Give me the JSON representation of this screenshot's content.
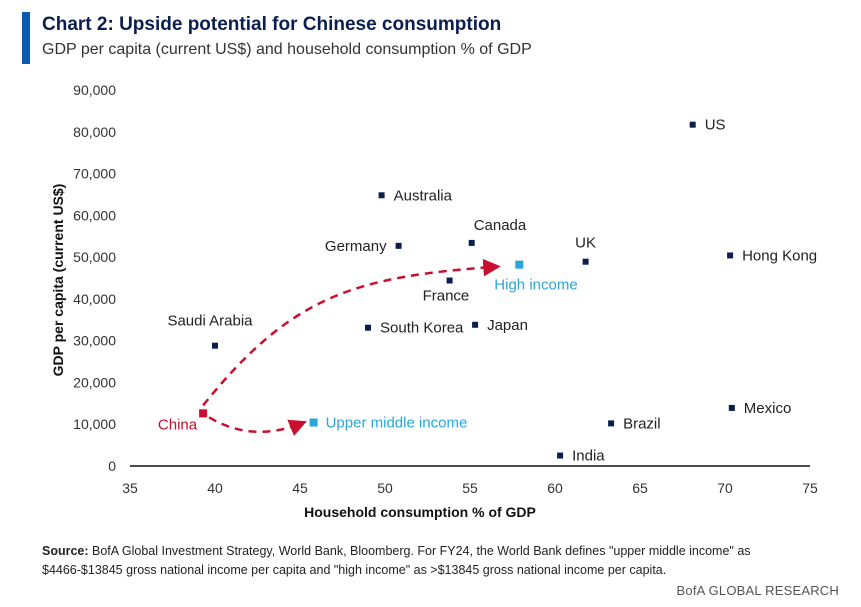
{
  "header": {
    "title": "Chart 2: Upside potential for Chinese consumption",
    "subtitle": "GDP per capita (current US$) and household consumption % of GDP"
  },
  "footer": {
    "source_label": "Source:",
    "source_text": " BofA Global Investment Strategy, World Bank, Bloomberg. For FY24, the World Bank defines \"upper middle income\" as $4466-$13845 gross national income per capita and \"high income\" as >$13845 gross national income per capita.",
    "brand": "BofA GLOBAL RESEARCH"
  },
  "chart_data": {
    "type": "scatter",
    "title": "Chart 2: Upside potential for Chinese consumption",
    "subtitle": "GDP per capita (current US$) and household consumption % of GDP",
    "xlabel": "Household consumption % of GDP",
    "ylabel": "GDP per capita (current US$)",
    "xlim": [
      35,
      75
    ],
    "ylim": [
      0,
      90000
    ],
    "xticks": [
      35,
      40,
      45,
      50,
      55,
      60,
      65,
      70,
      75
    ],
    "yticks": [
      0,
      10000,
      20000,
      30000,
      40000,
      50000,
      60000,
      70000,
      80000,
      90000
    ],
    "ytick_labels": [
      "0",
      "10,000",
      "20,000",
      "30,000",
      "40,000",
      "50,000",
      "60,000",
      "70,000",
      "80,000",
      "90,000"
    ],
    "grid": false,
    "colors": {
      "country": "#0b1f4f",
      "china": "#c8102e",
      "benchmark": "#2aa6d9",
      "axis_text": "#333333"
    },
    "points": [
      {
        "label": "US",
        "x": 68.1,
        "y": 81700,
        "kind": "country",
        "label_pos": "right"
      },
      {
        "label": "Australia",
        "x": 49.8,
        "y": 64800,
        "kind": "country",
        "label_pos": "right"
      },
      {
        "label": "Canada",
        "x": 55.1,
        "y": 53400,
        "kind": "country",
        "label_pos": "above-right"
      },
      {
        "label": "Germany",
        "x": 50.8,
        "y": 52700,
        "kind": "country",
        "label_pos": "left"
      },
      {
        "label": "UK",
        "x": 61.8,
        "y": 48900,
        "kind": "country",
        "label_pos": "above"
      },
      {
        "label": "Hong Kong",
        "x": 70.3,
        "y": 50400,
        "kind": "country",
        "label_pos": "right"
      },
      {
        "label": "France",
        "x": 53.8,
        "y": 44400,
        "kind": "country",
        "label_pos": "below-left"
      },
      {
        "label": "South Korea",
        "x": 49.0,
        "y": 33100,
        "kind": "country",
        "label_pos": "right"
      },
      {
        "label": "Japan",
        "x": 55.3,
        "y": 33800,
        "kind": "country",
        "label_pos": "right"
      },
      {
        "label": "Saudi Arabia",
        "x": 40.0,
        "y": 28800,
        "kind": "country",
        "label_pos": "above"
      },
      {
        "label": "Mexico",
        "x": 70.4,
        "y": 13900,
        "kind": "country",
        "label_pos": "right"
      },
      {
        "label": "Brazil",
        "x": 63.3,
        "y": 10200,
        "kind": "country",
        "label_pos": "right"
      },
      {
        "label": "India",
        "x": 60.3,
        "y": 2500,
        "kind": "country",
        "label_pos": "right"
      },
      {
        "label": "China",
        "x": 39.3,
        "y": 12600,
        "kind": "china",
        "label_pos": "left"
      },
      {
        "label": "High income",
        "x": 57.9,
        "y": 48200,
        "kind": "benchmark",
        "label_pos": "below-left"
      },
      {
        "label": "Upper middle income",
        "x": 45.8,
        "y": 10400,
        "kind": "benchmark",
        "label_pos": "right"
      }
    ]
  }
}
